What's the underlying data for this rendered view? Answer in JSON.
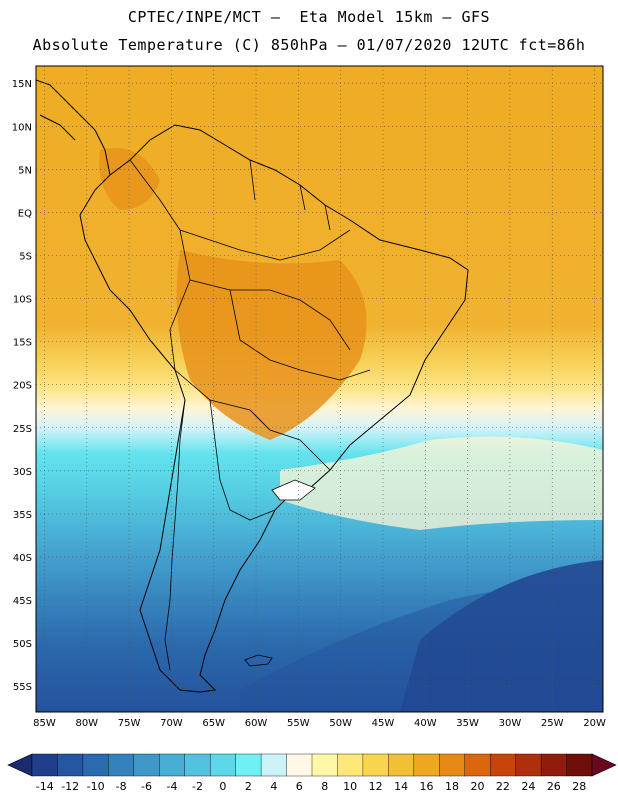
{
  "header": {
    "title_line1": "CPTEC/INPE/MCT –  Eta Model 15km – GFS",
    "title_line2": "Absolute Temperature (C) 850hPa – 01/07/2020 12UTC fct=86h"
  },
  "map": {
    "lat_labels": [
      "15N",
      "10N",
      "5N",
      "EQ",
      "5S",
      "10S",
      "15S",
      "20S",
      "25S",
      "30S",
      "35S",
      "40S",
      "45S",
      "50S",
      "55S"
    ],
    "lon_labels": [
      "85W",
      "80W",
      "75W",
      "70W",
      "65W",
      "60W",
      "55W",
      "50W",
      "45W",
      "40W",
      "35W",
      "30W",
      "25W",
      "20W"
    ],
    "lat_values": [
      15,
      10,
      5,
      0,
      -5,
      -10,
      -15,
      -20,
      -25,
      -30,
      -35,
      -40,
      -45,
      -50,
      -55
    ],
    "lon_values": [
      -85,
      -80,
      -75,
      -70,
      -65,
      -60,
      -55,
      -50,
      -45,
      -40,
      -35,
      -30,
      -25,
      -20
    ],
    "lon_range": [
      -86,
      -19
    ],
    "lat_range": [
      -58,
      17
    ],
    "grid": "dotted"
  },
  "colorbar": {
    "labels": [
      "-14",
      "-12",
      "-10",
      "-8",
      "-6",
      "-4",
      "-2",
      "0",
      "2",
      "4",
      "6",
      "8",
      "10",
      "12",
      "14",
      "16",
      "18",
      "20",
      "22",
      "24",
      "26",
      "28"
    ],
    "colors": [
      "#1f3f8c",
      "#2556a0",
      "#2a6aae",
      "#3482bd",
      "#3f98c8",
      "#49aed4",
      "#52c2de",
      "#5dd8e8",
      "#6ef0f4",
      "#cdf3fa",
      "#fff8e6",
      "#fff7a8",
      "#fde878",
      "#f9d54f",
      "#f3bf36",
      "#eea81f",
      "#e78a15",
      "#dc660d",
      "#c9440c",
      "#b02e0c",
      "#8f1c0c",
      "#6e1009"
    ],
    "low_color": "#1a2c6e",
    "high_color": "#6a0820"
  }
}
